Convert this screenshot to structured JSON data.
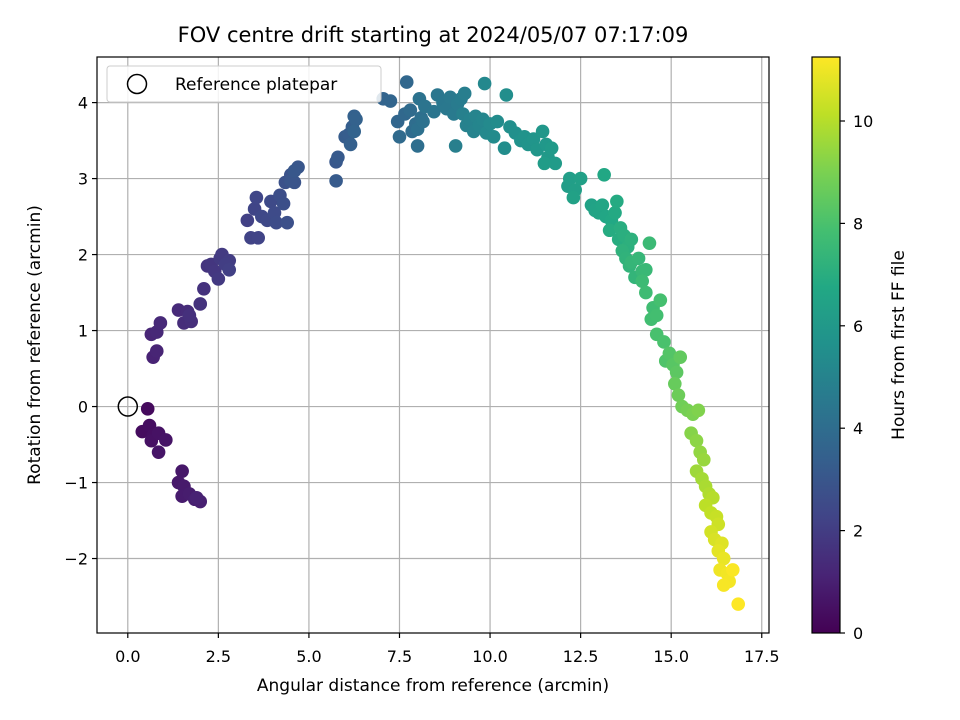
{
  "chart_data": {
    "type": "scatter",
    "title": "FOV centre drift starting at 2024/05/07 07:17:09",
    "xlabel": "Angular distance from reference (arcmin)",
    "ylabel": "Rotation from reference (arcmin)",
    "xlim": [
      -0.85,
      17.7
    ],
    "ylim": [
      -2.98,
      4.6
    ],
    "xticks": [
      0.0,
      2.5,
      5.0,
      7.5,
      10.0,
      12.5,
      15.0,
      17.5
    ],
    "xtick_labels": [
      "0.0",
      "2.5",
      "5.0",
      "7.5",
      "10.0",
      "12.5",
      "15.0",
      "17.5"
    ],
    "yticks": [
      -2,
      -1,
      0,
      1,
      2,
      3,
      4
    ],
    "ytick_labels": [
      "−2",
      "−1",
      "0",
      "1",
      "2",
      "3",
      "4"
    ],
    "grid": true,
    "legend": {
      "placement": "upper-left",
      "entries": [
        "Reference platepar"
      ]
    },
    "reference_point": {
      "x": 0.0,
      "y": 0.0
    },
    "colorbar": {
      "label": "Hours from first FF file",
      "colormap": "viridis",
      "range": [
        0,
        11.25
      ],
      "ticks": [
        0,
        2,
        4,
        6,
        8,
        10
      ],
      "tick_labels": [
        "0",
        "2",
        "4",
        "6",
        "8",
        "10"
      ]
    },
    "points": [
      [
        0.55,
        -0.03,
        0.3
      ],
      [
        0.4,
        -0.33,
        0.35
      ],
      [
        0.6,
        -0.25,
        0.4
      ],
      [
        0.7,
        -0.38,
        0.45
      ],
      [
        0.65,
        -0.45,
        0.5
      ],
      [
        0.85,
        -0.35,
        0.55
      ],
      [
        1.05,
        -0.44,
        0.6
      ],
      [
        0.85,
        -0.6,
        0.65
      ],
      [
        1.5,
        -0.85,
        0.7
      ],
      [
        1.4,
        -1.0,
        0.75
      ],
      [
        1.55,
        -1.05,
        0.8
      ],
      [
        1.5,
        -1.18,
        0.85
      ],
      [
        1.7,
        -1.15,
        0.9
      ],
      [
        1.85,
        -1.22,
        0.95
      ],
      [
        2.0,
        -1.25,
        1.0
      ],
      [
        1.9,
        -1.2,
        1.05
      ],
      [
        0.7,
        0.65,
        1.1
      ],
      [
        0.8,
        0.73,
        1.15
      ],
      [
        0.65,
        0.95,
        1.2
      ],
      [
        0.8,
        0.98,
        1.25
      ],
      [
        0.9,
        1.1,
        1.3
      ],
      [
        1.4,
        1.27,
        1.35
      ],
      [
        1.65,
        1.25,
        1.4
      ],
      [
        1.55,
        1.1,
        1.45
      ],
      [
        1.75,
        1.12,
        1.5
      ],
      [
        1.7,
        1.2,
        1.55
      ],
      [
        2.1,
        1.55,
        1.6
      ],
      [
        2.0,
        1.35,
        1.65
      ],
      [
        2.2,
        1.85,
        1.7
      ],
      [
        2.3,
        1.87,
        1.75
      ],
      [
        2.4,
        1.78,
        1.8
      ],
      [
        2.5,
        1.68,
        1.85
      ],
      [
        2.55,
        1.95,
        1.9
      ],
      [
        2.6,
        2.0,
        1.95
      ],
      [
        2.8,
        1.92,
        2.0
      ],
      [
        2.7,
        1.87,
        2.05
      ],
      [
        2.8,
        1.8,
        2.1
      ],
      [
        3.3,
        2.45,
        2.15
      ],
      [
        3.4,
        2.22,
        2.2
      ],
      [
        3.6,
        2.22,
        2.25
      ],
      [
        3.5,
        2.6,
        2.3
      ],
      [
        3.55,
        2.75,
        2.35
      ],
      [
        3.7,
        2.5,
        2.4
      ],
      [
        3.85,
        2.45,
        2.45
      ],
      [
        3.95,
        2.7,
        2.5
      ],
      [
        4.05,
        2.55,
        2.55
      ],
      [
        4.1,
        2.42,
        2.6
      ],
      [
        4.2,
        2.78,
        2.65
      ],
      [
        4.3,
        2.67,
        2.7
      ],
      [
        4.4,
        2.42,
        2.75
      ],
      [
        4.35,
        2.95,
        2.8
      ],
      [
        4.5,
        3.05,
        2.85
      ],
      [
        4.6,
        2.95,
        2.9
      ],
      [
        4.5,
        2.97,
        2.95
      ],
      [
        4.7,
        3.15,
        3.0
      ],
      [
        4.6,
        3.1,
        3.05
      ],
      [
        5.75,
        3.22,
        3.1
      ],
      [
        5.8,
        3.28,
        3.15
      ],
      [
        5.75,
        2.97,
        3.2
      ],
      [
        6.0,
        3.55,
        3.25
      ],
      [
        6.1,
        3.58,
        3.3
      ],
      [
        6.2,
        3.68,
        3.35
      ],
      [
        6.15,
        3.45,
        3.4
      ],
      [
        6.25,
        3.82,
        3.45
      ],
      [
        6.3,
        3.78,
        3.5
      ],
      [
        6.25,
        3.62,
        3.55
      ],
      [
        7.05,
        4.05,
        3.6
      ],
      [
        7.25,
        4.02,
        3.65
      ],
      [
        7.45,
        3.75,
        3.7
      ],
      [
        7.7,
        4.27,
        3.75
      ],
      [
        7.65,
        3.85,
        3.8
      ],
      [
        7.5,
        3.55,
        3.85
      ],
      [
        7.8,
        3.9,
        3.9
      ],
      [
        7.85,
        3.62,
        3.95
      ],
      [
        7.95,
        3.72,
        4.0
      ],
      [
        8.0,
        3.43,
        4.05
      ],
      [
        8.1,
        3.8,
        4.1
      ],
      [
        8.0,
        3.65,
        4.15
      ],
      [
        8.15,
        3.75,
        4.2
      ],
      [
        8.05,
        4.05,
        4.25
      ],
      [
        8.2,
        3.95,
        4.3
      ],
      [
        8.45,
        3.88,
        4.35
      ],
      [
        8.55,
        4.1,
        4.4
      ],
      [
        8.7,
        4.0,
        4.45
      ],
      [
        8.8,
        3.92,
        4.5
      ],
      [
        8.9,
        4.07,
        4.55
      ],
      [
        9.0,
        3.85,
        4.6
      ],
      [
        9.1,
        3.98,
        4.65
      ],
      [
        9.2,
        4.05,
        4.7
      ],
      [
        9.3,
        4.12,
        4.75
      ],
      [
        9.05,
        3.43,
        4.8
      ],
      [
        9.25,
        3.85,
        4.85
      ],
      [
        9.35,
        3.7,
        4.9
      ],
      [
        9.45,
        3.78,
        4.95
      ],
      [
        9.55,
        3.62,
        5.0
      ],
      [
        9.6,
        3.82,
        5.05
      ],
      [
        9.7,
        3.7,
        5.1
      ],
      [
        9.8,
        3.78,
        5.15
      ],
      [
        9.85,
        4.25,
        5.2
      ],
      [
        9.9,
        3.6,
        5.25
      ],
      [
        10.0,
        3.72,
        5.3
      ],
      [
        10.1,
        3.55,
        5.35
      ],
      [
        10.2,
        3.75,
        5.4
      ],
      [
        10.4,
        3.4,
        5.45
      ],
      [
        10.45,
        4.1,
        5.5
      ],
      [
        10.55,
        3.68,
        5.55
      ],
      [
        10.7,
        3.6,
        5.6
      ],
      [
        10.85,
        3.5,
        5.65
      ],
      [
        10.95,
        3.55,
        5.7
      ],
      [
        11.05,
        3.45,
        5.75
      ],
      [
        11.2,
        3.52,
        5.8
      ],
      [
        11.3,
        3.38,
        5.85
      ],
      [
        11.45,
        3.62,
        5.9
      ],
      [
        11.55,
        3.45,
        5.95
      ],
      [
        11.6,
        3.28,
        6.0
      ],
      [
        11.7,
        3.4,
        6.05
      ],
      [
        11.8,
        3.2,
        6.1
      ],
      [
        11.5,
        3.2,
        6.15
      ],
      [
        12.15,
        2.9,
        6.2
      ],
      [
        12.2,
        3.0,
        6.25
      ],
      [
        12.35,
        2.85,
        6.3
      ],
      [
        12.5,
        3.0,
        6.35
      ],
      [
        12.3,
        2.75,
        6.4
      ],
      [
        12.8,
        2.65,
        6.45
      ],
      [
        12.9,
        2.58,
        6.5
      ],
      [
        13.0,
        2.55,
        6.55
      ],
      [
        13.1,
        2.65,
        6.6
      ],
      [
        13.2,
        2.5,
        6.65
      ],
      [
        13.15,
        3.05,
        6.7
      ],
      [
        13.35,
        2.45,
        6.75
      ],
      [
        13.45,
        2.55,
        6.8
      ],
      [
        13.5,
        2.7,
        6.85
      ],
      [
        13.3,
        2.32,
        6.9
      ],
      [
        13.55,
        2.2,
        6.95
      ],
      [
        13.6,
        2.35,
        7.0
      ],
      [
        13.7,
        2.25,
        7.05
      ],
      [
        13.8,
        2.1,
        7.1
      ],
      [
        13.9,
        2.2,
        7.15
      ],
      [
        13.65,
        2.05,
        7.2
      ],
      [
        13.75,
        1.95,
        7.25
      ],
      [
        13.85,
        1.85,
        7.3
      ],
      [
        14.0,
        1.7,
        7.35
      ],
      [
        13.9,
        1.9,
        7.4
      ],
      [
        14.1,
        1.95,
        7.45
      ],
      [
        14.2,
        1.78,
        7.5
      ],
      [
        14.3,
        1.8,
        7.55
      ],
      [
        14.4,
        2.15,
        7.6
      ],
      [
        14.2,
        1.65,
        7.65
      ],
      [
        14.3,
        1.5,
        7.7
      ],
      [
        14.5,
        1.3,
        7.75
      ],
      [
        14.45,
        1.15,
        7.8
      ],
      [
        14.6,
        1.2,
        7.85
      ],
      [
        14.7,
        1.4,
        7.9
      ],
      [
        14.6,
        0.95,
        7.95
      ],
      [
        14.8,
        0.85,
        8.0
      ],
      [
        14.85,
        0.6,
        8.1
      ],
      [
        14.95,
        0.7,
        8.2
      ],
      [
        15.05,
        0.55,
        8.3
      ],
      [
        15.15,
        0.45,
        8.4
      ],
      [
        15.25,
        0.65,
        8.5
      ],
      [
        15.1,
        0.3,
        8.6
      ],
      [
        15.2,
        0.15,
        8.7
      ],
      [
        15.3,
        0.0,
        8.8
      ],
      [
        15.45,
        -0.05,
        8.9
      ],
      [
        15.6,
        -0.1,
        9.0
      ],
      [
        15.75,
        -0.05,
        9.1
      ],
      [
        15.55,
        -0.35,
        9.2
      ],
      [
        15.7,
        -0.45,
        9.3
      ],
      [
        15.8,
        -0.6,
        9.4
      ],
      [
        15.9,
        -0.7,
        9.5
      ],
      [
        15.7,
        -0.85,
        9.6
      ],
      [
        15.85,
        -0.95,
        9.7
      ],
      [
        15.95,
        -1.05,
        9.8
      ],
      [
        16.05,
        -1.15,
        9.9
      ],
      [
        16.15,
        -1.2,
        10.0
      ],
      [
        15.95,
        -1.3,
        10.1
      ],
      [
        16.1,
        -1.4,
        10.2
      ],
      [
        16.25,
        -1.45,
        10.3
      ],
      [
        16.3,
        -1.55,
        10.4
      ],
      [
        16.1,
        -1.65,
        10.5
      ],
      [
        16.2,
        -1.75,
        10.6
      ],
      [
        16.4,
        -1.8,
        10.7
      ],
      [
        16.3,
        -1.9,
        10.8
      ],
      [
        16.45,
        -2.0,
        10.9
      ],
      [
        16.35,
        -2.15,
        11.0
      ],
      [
        16.55,
        -2.2,
        11.05
      ],
      [
        16.6,
        -2.3,
        11.1
      ],
      [
        16.45,
        -2.35,
        11.15
      ],
      [
        16.7,
        -2.15,
        11.2
      ],
      [
        16.85,
        -2.6,
        11.25
      ]
    ]
  }
}
